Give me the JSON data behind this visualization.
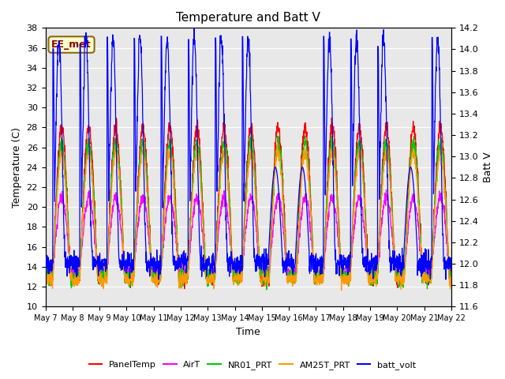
{
  "title": "Temperature and Batt V",
  "xlabel": "Time",
  "ylabel_left": "Temperature (C)",
  "ylabel_right": "Batt V",
  "annotation": "EE_met",
  "ylim_left": [
    10,
    38
  ],
  "ylim_right": [
    11.6,
    14.2
  ],
  "yticks_left": [
    10,
    12,
    14,
    16,
    18,
    20,
    22,
    24,
    26,
    28,
    30,
    32,
    34,
    36,
    38
  ],
  "yticks_right": [
    11.6,
    11.8,
    12.0,
    12.2,
    12.4,
    12.6,
    12.8,
    13.0,
    13.2,
    13.4,
    13.6,
    13.8,
    14.0,
    14.2
  ],
  "x_tick_labels": [
    "May 7",
    "May 8",
    "May 9",
    "May 10",
    "May 11",
    "May 12",
    "May 13",
    "May 14",
    "May 15",
    "May 16",
    "May 17",
    "May 18",
    "May 19",
    "May 20",
    "May 21",
    "May 22"
  ],
  "colors": {
    "PanelTemp": "#ff0000",
    "AirT": "#ff00ff",
    "NR01_PRT": "#00cc00",
    "AM25T_PRT": "#ff9900",
    "batt_volt": "#0000ff"
  },
  "bg_color": "#e8e8e8",
  "grid_color": "#ffffff",
  "n_points": 2000
}
